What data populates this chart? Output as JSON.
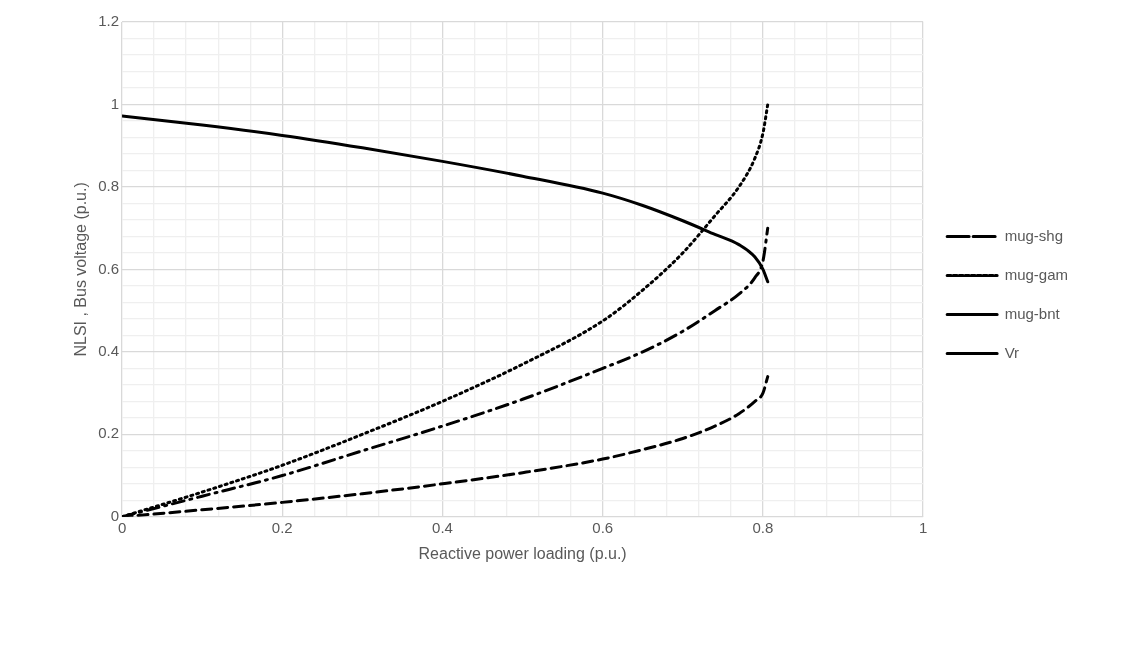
{
  "chart_data": {
    "type": "line",
    "xlabel": "Reactive power loading (p.u.)",
    "ylabel": "NLSI , Bus voltage (p.u.)",
    "xlim": [
      0,
      1
    ],
    "ylim": [
      0,
      1.2
    ],
    "xticks": [
      0,
      {
        "value": 0.04,
        "label": null
      },
      {
        "value": 0.08,
        "label": null
      },
      {
        "value": 0.12,
        "label": null
      },
      {
        "value": 0.16,
        "label": null
      },
      0.2,
      {
        "value": 0.24,
        "label": null
      },
      {
        "value": 0.28,
        "label": null
      },
      {
        "value": 0.32,
        "label": null
      },
      {
        "value": 0.36,
        "label": null
      },
      0.4,
      {
        "value": 0.44,
        "label": null
      },
      {
        "value": 0.48,
        "label": null
      },
      {
        "value": 0.52,
        "label": null
      },
      {
        "value": 0.56,
        "label": null
      },
      0.6,
      {
        "value": 0.64,
        "label": null
      },
      {
        "value": 0.68,
        "label": null
      },
      {
        "value": 0.72,
        "label": null
      },
      {
        "value": 0.76,
        "label": null
      },
      0.8,
      {
        "value": 0.84,
        "label": null
      },
      {
        "value": 0.88,
        "label": null
      },
      {
        "value": 0.92,
        "label": null
      },
      {
        "value": 0.96,
        "label": null
      },
      1
    ],
    "yticks": [
      0,
      {
        "value": 0.04,
        "label": null
      },
      {
        "value": 0.08,
        "label": null
      },
      {
        "value": 0.12,
        "label": null
      },
      {
        "value": 0.16,
        "label": null
      },
      0.2,
      {
        "value": 0.24,
        "label": null
      },
      {
        "value": 0.28,
        "label": null
      },
      {
        "value": 0.32,
        "label": null
      },
      {
        "value": 0.36,
        "label": null
      },
      0.4,
      {
        "value": 0.44,
        "label": null
      },
      {
        "value": 0.48,
        "label": null
      },
      {
        "value": 0.52,
        "label": null
      },
      {
        "value": 0.56,
        "label": null
      },
      0.6,
      {
        "value": 0.64,
        "label": null
      },
      {
        "value": 0.68,
        "label": null
      },
      {
        "value": 0.72,
        "label": null
      },
      {
        "value": 0.76,
        "label": null
      },
      0.8,
      {
        "value": 0.84,
        "label": null
      },
      {
        "value": 0.88,
        "label": null
      },
      {
        "value": 0.92,
        "label": null
      },
      {
        "value": 0.96,
        "label": null
      },
      1,
      {
        "value": 1.04,
        "label": null
      },
      {
        "value": 1.08,
        "label": null
      },
      {
        "value": 1.12,
        "label": null
      },
      {
        "value": 1.16,
        "label": null
      },
      1.2
    ],
    "grid": true,
    "legend": "right",
    "marker": "none",
    "x": [
      0,
      0.1,
      0.2,
      0.3,
      0.4,
      0.5,
      0.6,
      0.65,
      0.7,
      0.74,
      0.77,
      0.79,
      0.8,
      0.806
    ],
    "series": [
      {
        "name": "mug-shg",
        "color": "#000000",
        "line_style": "dashdot",
        "values": [
          0,
          0.05,
          0.1,
          0.16,
          0.22,
          0.285,
          0.36,
          0.4,
          0.45,
          0.5,
          0.54,
          0.58,
          0.62,
          0.7
        ]
      },
      {
        "name": "mug-gam",
        "color": "#000000",
        "line_style": "dotted",
        "values": [
          0,
          0.06,
          0.125,
          0.2,
          0.28,
          0.37,
          0.475,
          0.55,
          0.64,
          0.73,
          0.8,
          0.87,
          0.93,
          1.0
        ]
      },
      {
        "name": "mug-bnt",
        "color": "#000000",
        "line_style": "dashed",
        "values": [
          0,
          0.017,
          0.035,
          0.056,
          0.08,
          0.107,
          0.14,
          0.163,
          0.19,
          0.22,
          0.25,
          0.28,
          0.3,
          0.34
        ]
      },
      {
        "name": "Vr",
        "color": "#000000",
        "line_style": "solid",
        "values": [
          0.972,
          0.95,
          0.925,
          0.895,
          0.862,
          0.826,
          0.785,
          0.755,
          0.718,
          0.685,
          0.66,
          0.63,
          0.6,
          0.57
        ]
      }
    ]
  }
}
